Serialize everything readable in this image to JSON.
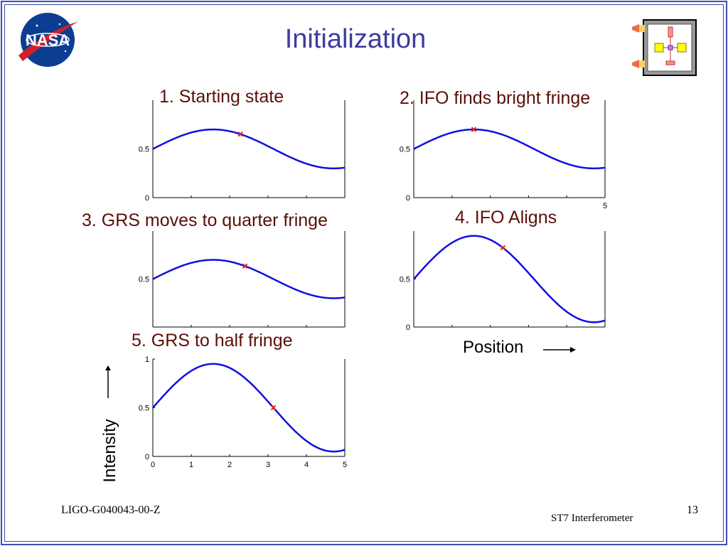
{
  "slide": {
    "title": "Initialization",
    "footer_left": "LIGO-G040043-00-Z",
    "footer_mid": "ST7  Interferometer",
    "page_number": "13",
    "y_axis_label": "Intensity",
    "x_axis_label": "Position"
  },
  "panels": [
    {
      "title": "1.  Starting state"
    },
    {
      "title": "2.  IFO finds bright fringe"
    },
    {
      "title": "3.  GRS moves to quarter fringe"
    },
    {
      "title": "4.  IFO Aligns"
    },
    {
      "title": "5.  GRS to half fringe"
    }
  ],
  "chart_data": [
    {
      "type": "line",
      "title": "1.  Starting state",
      "xlim": [
        0,
        5
      ],
      "ylim": [
        0,
        1
      ],
      "y_ticks": [
        "0",
        "0.5"
      ],
      "amplitude": 0.2,
      "marker_x": 2.28
    },
    {
      "type": "line",
      "title": "2.  IFO finds bright fringe",
      "xlim": [
        0,
        5
      ],
      "ylim": [
        0,
        1
      ],
      "y_ticks": [
        "0",
        "0.5"
      ],
      "x_ticks": [
        "5"
      ],
      "amplitude": 0.2,
      "marker_x": 1.57
    },
    {
      "type": "line",
      "title": "3.  GRS moves to quarter fringe",
      "xlim": [
        0,
        5
      ],
      "ylim": [
        0,
        1
      ],
      "y_ticks": [
        "0.5"
      ],
      "amplitude": 0.2,
      "marker_x": 2.4
    },
    {
      "type": "line",
      "title": "4.  IFO Aligns",
      "xlim": [
        0,
        5
      ],
      "ylim": [
        0,
        1
      ],
      "y_ticks": [
        "0",
        "0.5"
      ],
      "amplitude": 0.45,
      "marker_x": 2.33
    },
    {
      "type": "line",
      "title": "5.  GRS to half fringe",
      "xlim": [
        0,
        5
      ],
      "ylim": [
        0,
        1
      ],
      "y_ticks": [
        "0",
        "0.5",
        "1"
      ],
      "x_ticks": [
        "0",
        "1",
        "2",
        "3",
        "4",
        "5"
      ],
      "amplitude": 0.45,
      "marker_x": 3.14
    }
  ],
  "colors": {
    "curve": "#1010e0",
    "marker": "#e02020",
    "title": "#3c3ca0",
    "panel_title": "#5a1008",
    "frame": "#3d4fb5"
  }
}
